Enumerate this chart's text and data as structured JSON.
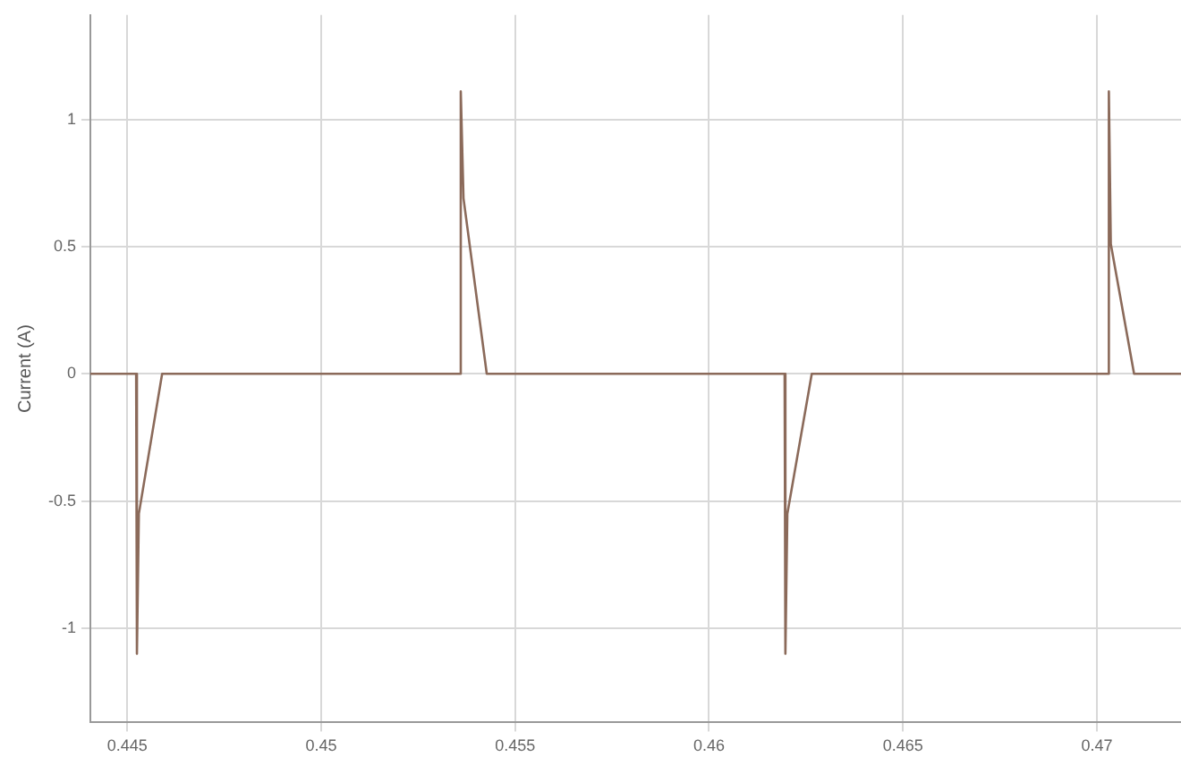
{
  "chart_data": {
    "type": "line",
    "ylabel": "Current (A)",
    "xlim": [
      0.44405,
      0.47217
    ],
    "xticks": [
      0.445,
      0.45,
      0.455,
      0.46,
      0.465,
      0.47
    ],
    "ylim": [
      -1.37,
      1.41
    ],
    "yticks": [
      -1,
      -0.5,
      0,
      0.5,
      1
    ],
    "grid": true,
    "legend": false,
    "marker": "none",
    "line_style": "solid",
    "series": [
      {
        "color": "#8b6a5a",
        "x": [
          0.44405,
          0.44523,
          0.44525,
          0.4453,
          0.4459,
          0.45359,
          0.4536,
          0.45367,
          0.45427,
          0.46195,
          0.46197,
          0.46202,
          0.46265,
          0.4703,
          0.47031,
          0.47036,
          0.47096,
          0.47217
        ],
        "values": [
          0,
          0,
          -1.1,
          -0.55,
          0,
          0,
          1.11,
          0.69,
          0,
          0,
          -1.1,
          -0.55,
          0,
          0,
          1.11,
          0.51,
          0,
          0
        ]
      }
    ]
  }
}
